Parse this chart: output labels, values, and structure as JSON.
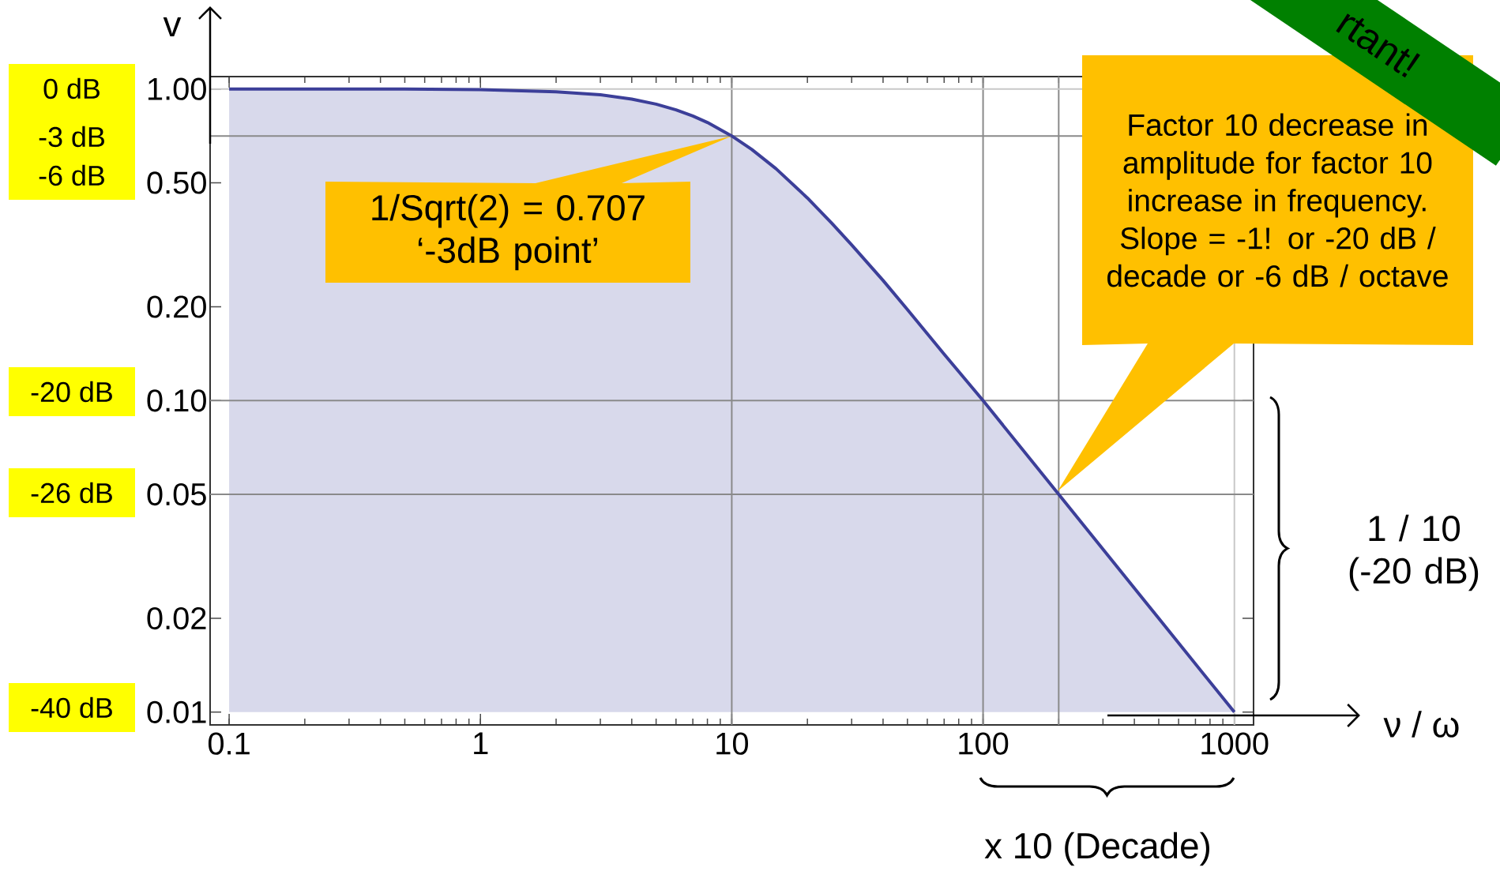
{
  "chart_data": {
    "type": "area",
    "xlabel": "ν / ω",
    "ylabel": "v",
    "log": "xy",
    "x": [
      0.1,
      0.2,
      0.5,
      1,
      2,
      3,
      4,
      5,
      6,
      7,
      8,
      10,
      12,
      15,
      20,
      25,
      30,
      40,
      50,
      70,
      100,
      200,
      500,
      1000
    ],
    "series": [
      {
        "color": "#3c3f99",
        "values": [
          1.0,
          1.0,
          1.0,
          0.995,
          0.98,
          0.958,
          0.928,
          0.894,
          0.857,
          0.819,
          0.781,
          0.707,
          0.64,
          0.555,
          0.447,
          0.371,
          0.316,
          0.243,
          0.196,
          0.141,
          0.1,
          0.05,
          0.02,
          0.01
        ]
      }
    ],
    "xlim": [
      0.084,
      1192
    ],
    "ylim": [
      0.0091,
      1.096
    ],
    "xticks": [
      0.1,
      1,
      10,
      100,
      1000
    ],
    "yticks": [
      {
        "value": 0.01,
        "label": "0.01"
      },
      {
        "value": 0.02,
        "label": "0.02"
      },
      {
        "value": 0.05,
        "label": "0.05"
      },
      {
        "value": 0.1,
        "label": "0.10"
      },
      {
        "value": 0.2,
        "label": "0.20"
      },
      {
        "value": 0.5,
        "label": "0.50"
      },
      {
        "value": 1,
        "label": "1.00"
      }
    ],
    "ref_lines": [
      {
        "axis": "x",
        "value": 10,
        "color": "#8a8a8a"
      },
      {
        "axis": "x",
        "value": 100,
        "color": "#8a8a8a"
      },
      {
        "axis": "x",
        "value": 200,
        "color": "#8a8a8a"
      },
      {
        "axis": "x",
        "value": 1000,
        "color": "#c8c8c8"
      },
      {
        "axis": "y",
        "value": 1,
        "color": "#c8c8c8"
      },
      {
        "axis": "y",
        "value": 0.707,
        "color": "#8a8a8a"
      },
      {
        "axis": "y",
        "value": 0.1,
        "color": "#8a8a8a"
      },
      {
        "axis": "y",
        "value": 0.05,
        "color": "#8a8a8a"
      }
    ],
    "annotations": [
      "0 dB",
      "-3 dB",
      "-6 dB",
      "-20 dB",
      "-26 dB",
      "-40 dB",
      {
        "text": "1/Sqrt(2) = 0.707 ‘-3dB point’",
        "x": 10,
        "y": 0.707
      },
      "Factor 10 decrease in amplitude for factor 10 increase in frequency. Slope = -1! or -20 dB / decade or -6 dB / octave",
      "1 / 10 (-20 dB)",
      "x 10 (Decade)",
      "rtant!"
    ]
  }
}
